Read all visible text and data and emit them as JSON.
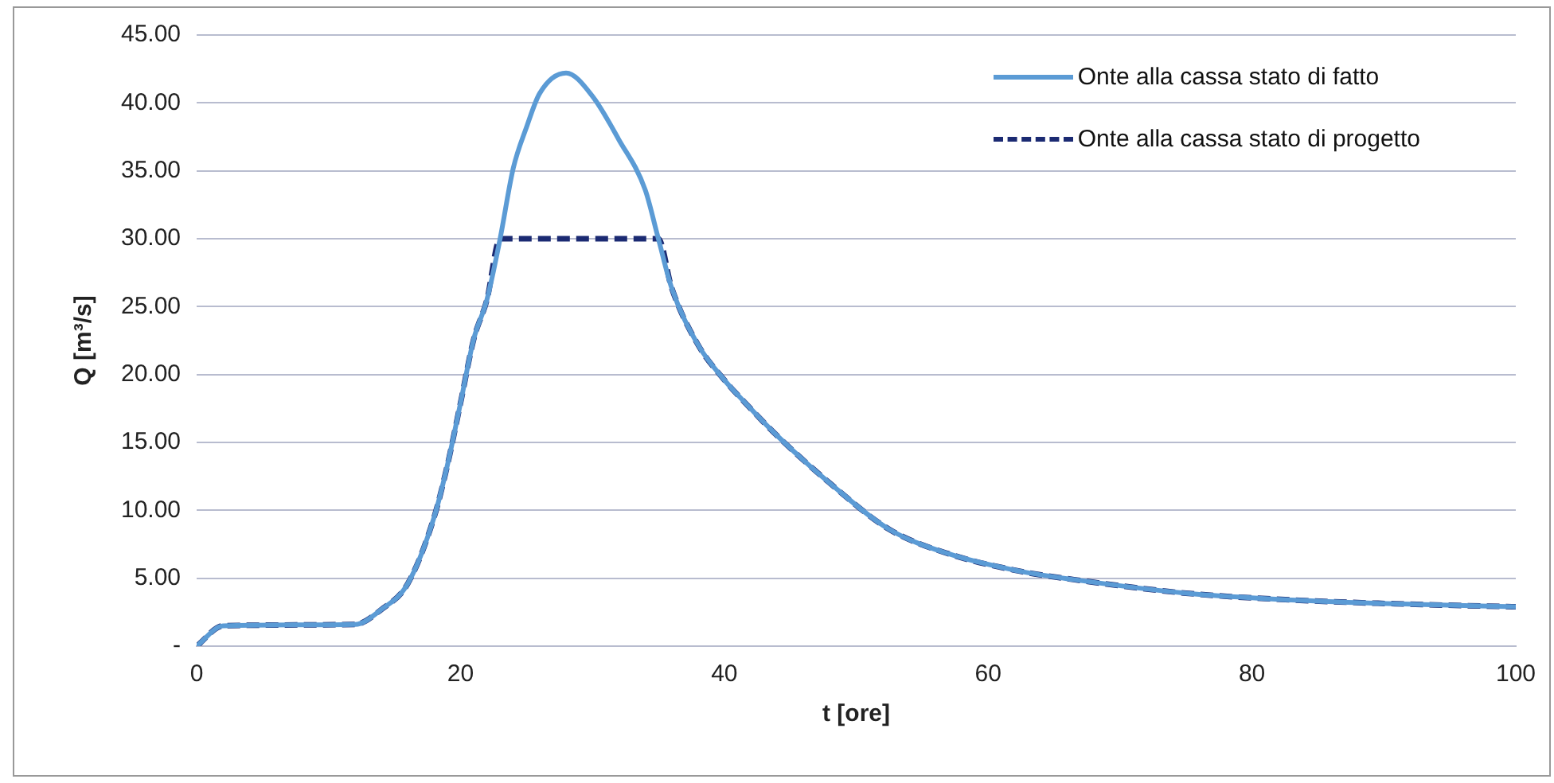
{
  "chart_data": {
    "type": "line",
    "xlabel": "t [ore]",
    "ylabel": "Q [m³/s]",
    "x": [
      0,
      2,
      12,
      14,
      16,
      18,
      19,
      20,
      21,
      22,
      23,
      24,
      25,
      26,
      28,
      30,
      32,
      34,
      35,
      36,
      38,
      40,
      41.5,
      44,
      48,
      52.5,
      57,
      62.5,
      66.5,
      75,
      83,
      91.5,
      100
    ],
    "series": [
      {
        "name": "Onte alla cassa stato di fatto",
        "color": "#5b9bd5",
        "line_style": "solid",
        "values": [
          0,
          1.5,
          1.6,
          2.7,
          4.6,
          9.5,
          13.3,
          17.9,
          22.6,
          25.5,
          30,
          35.2,
          38.2,
          40.7,
          42.2,
          40.5,
          37.3,
          33.6,
          30,
          26.4,
          22.2,
          19.6,
          18,
          15.5,
          12,
          8.6,
          6.8,
          5.5,
          4.9,
          3.9,
          3.4,
          3.1,
          2.9
        ]
      },
      {
        "name": "Onte alla cassa stato di progetto",
        "color": "#1b2a72",
        "line_style": "dashed",
        "values": [
          0,
          1.5,
          1.6,
          2.7,
          4.6,
          9.5,
          13.3,
          17.9,
          22.6,
          25.5,
          30,
          30,
          30,
          30,
          30,
          30,
          30,
          30,
          30,
          26.4,
          22.2,
          19.6,
          18,
          15.5,
          12,
          8.6,
          6.8,
          5.5,
          4.9,
          3.9,
          3.4,
          3.1,
          2.9
        ]
      }
    ],
    "xlim": [
      0,
      100
    ],
    "xticks": [
      0,
      20,
      40,
      60,
      80,
      100
    ],
    "ylim": [
      0,
      45
    ],
    "yticks": [
      {
        "value": 0,
        "label": "-"
      },
      {
        "value": 5,
        "label": "5.00"
      },
      {
        "value": 10,
        "label": "10.00"
      },
      {
        "value": 15,
        "label": "15.00"
      },
      {
        "value": 20,
        "label": "20.00"
      },
      {
        "value": 25,
        "label": "25.00"
      },
      {
        "value": 30,
        "label": "30.00"
      },
      {
        "value": 35,
        "label": "35.00"
      },
      {
        "value": 40,
        "label": "40.00"
      },
      {
        "value": 45,
        "label": "45.00"
      }
    ],
    "grid": "y",
    "legend": "top right",
    "marker": "none"
  }
}
